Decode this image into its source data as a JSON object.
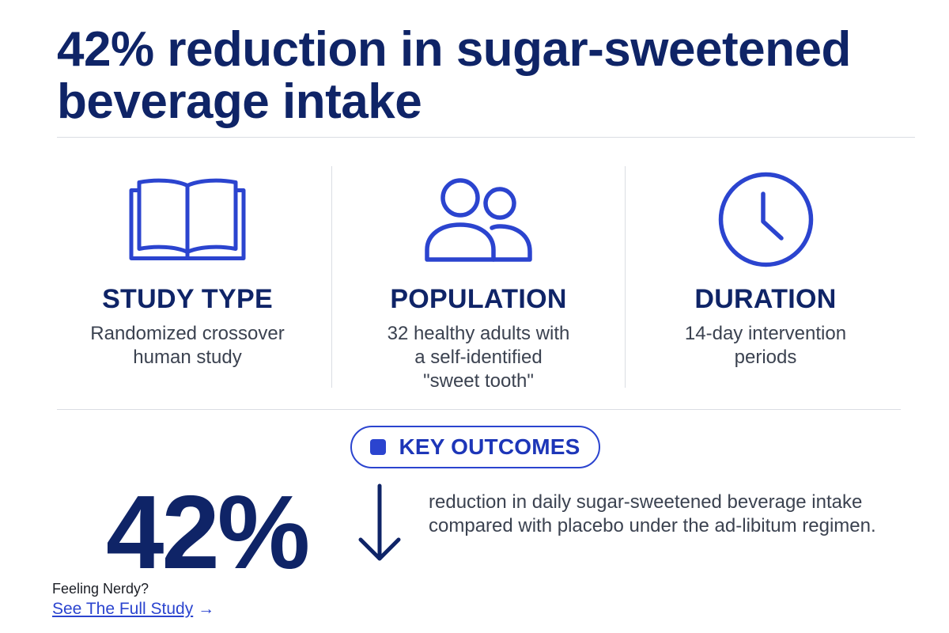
{
  "headline": "42% reduction in sugar-sweetened beverage intake",
  "colors": {
    "navy": "#0f2467",
    "accent_blue": "#2b44cf",
    "body_text": "#3b4250",
    "divider": "#dadde3"
  },
  "stats": [
    {
      "icon": "open-book-icon",
      "title": "STUDY TYPE",
      "description": "Randomized crossover\nhuman study"
    },
    {
      "icon": "users-icon",
      "title": "POPULATION",
      "description": "32 healthy adults with\na self-identified\n\"sweet tooth\""
    },
    {
      "icon": "clock-icon",
      "title": "DURATION",
      "description": "14-day intervention\nperiods"
    }
  ],
  "key_outcomes": {
    "label": "KEY OUTCOMES",
    "value": "42%",
    "direction": "down",
    "description": "reduction in daily sugar-sweetened beverage intake compared with placebo under the ad-libitum regimen."
  },
  "footer": {
    "prompt": "Feeling Nerdy?",
    "link_label": "See The Full Study",
    "link_arrow": "→"
  }
}
